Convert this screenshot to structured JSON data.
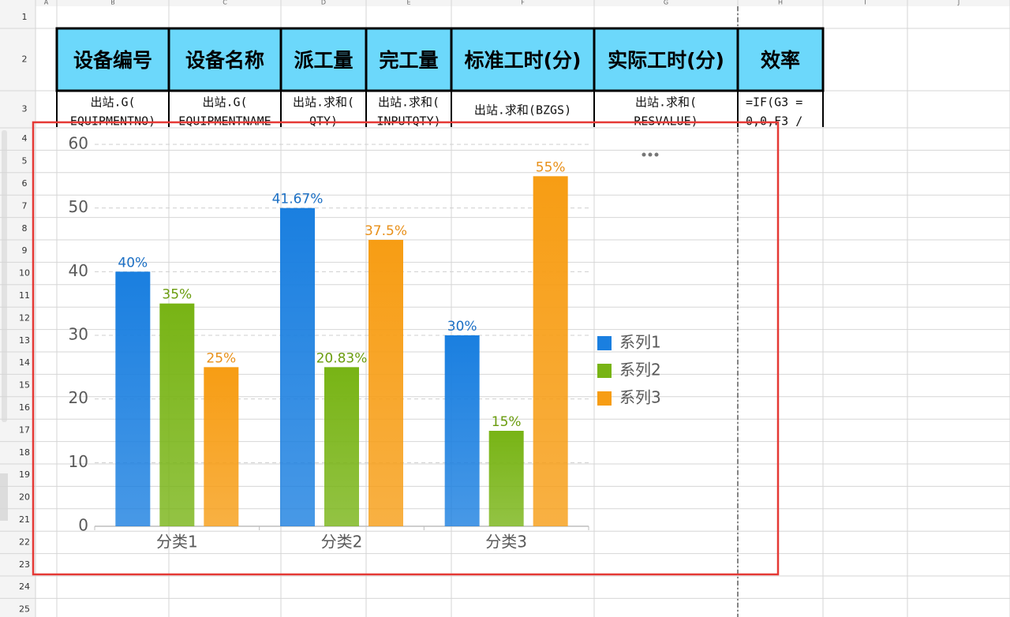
{
  "columns": [
    "A",
    "B",
    "C",
    "D",
    "E",
    "F",
    "G",
    "H",
    "I",
    "J"
  ],
  "row_numbers": [
    1,
    2,
    3,
    4,
    5,
    6,
    7,
    8,
    9,
    10,
    11,
    12,
    13,
    14,
    15,
    16,
    17,
    18,
    19,
    20,
    21,
    22,
    23,
    24,
    25
  ],
  "table": {
    "header": [
      "设备编号",
      "设备名称",
      "派工量",
      "完工量",
      "标准工时(分)",
      "实际工时(分)",
      "效率"
    ],
    "formulas": [
      [
        "出站.G(",
        "EQUIPMENTNO)"
      ],
      [
        "出站.G(",
        "EQUIPMENTNAME"
      ],
      [
        "出站.求和(",
        "QTY)"
      ],
      [
        "出站.求和(",
        "INPUTQTY)"
      ],
      [
        "出站.求和(BZGS)"
      ],
      [
        "出站.求和(",
        "RESVALUE)"
      ],
      [
        "=IF(G3 =",
        "0,0,F3 /"
      ]
    ]
  },
  "chart_data": {
    "type": "bar",
    "categories": [
      "分类1",
      "分类2",
      "分类3"
    ],
    "series": [
      {
        "name": "系列1",
        "color": "#1a7fe0",
        "values": [
          40,
          50,
          30
        ],
        "share_labels": [
          "40%",
          "41.67%",
          "30%"
        ]
      },
      {
        "name": "系列2",
        "color": "#78b415",
        "values": [
          35,
          25,
          15
        ],
        "share_labels": [
          "35%",
          "20.83%",
          "15%"
        ]
      },
      {
        "name": "系列3",
        "color": "#f79d14",
        "values": [
          25,
          45,
          55
        ],
        "share_labels": [
          "25%",
          "37.5%",
          "55%"
        ]
      }
    ],
    "ylim": [
      0,
      60
    ],
    "yticks": [
      0,
      10,
      20,
      30,
      40,
      50,
      60
    ],
    "grid": true,
    "legend": "right"
  }
}
